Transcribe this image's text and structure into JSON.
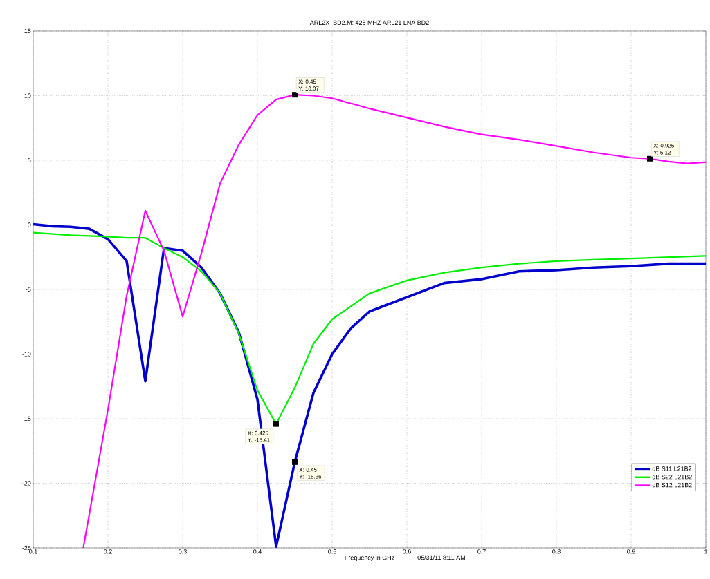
{
  "chart_data": {
    "type": "line",
    "title": "ARL2X_BD2.M:  425 MHZ ARL21 LNA BD2",
    "xlabel": "Frequency in GHz",
    "xlim": [
      0.1,
      1
    ],
    "xticks": [
      0.1,
      0.2,
      0.3,
      0.4,
      0.5,
      0.6,
      0.7,
      0.8,
      0.9,
      1
    ],
    "ylim": [
      -25,
      15
    ],
    "yticks": [
      -25,
      -20,
      -15,
      -10,
      -5,
      0,
      5,
      10,
      15
    ],
    "grid": true,
    "legend": "bottom right",
    "line_style": "solid",
    "marker": "none",
    "series": [
      {
        "name": "dB S11 L21B2",
        "color": "#0000cc",
        "x": [
          0.1,
          0.125,
          0.15,
          0.175,
          0.2,
          0.225,
          0.25,
          0.275,
          0.3,
          0.325,
          0.35,
          0.375,
          0.4,
          0.425,
          0.45,
          0.475,
          0.5,
          0.525,
          0.55,
          0.6,
          0.65,
          0.7,
          0.75,
          0.8,
          0.85,
          0.9,
          0.95,
          1.0
        ],
        "values": [
          0.05,
          -0.1,
          -0.15,
          -0.3,
          -1.1,
          -2.8,
          -12.1,
          -1.8,
          -2.0,
          -3.3,
          -5.3,
          -8.3,
          -13.5,
          -24.9,
          -18.36,
          -13,
          -10,
          -8,
          -6.7,
          -5.6,
          -4.5,
          -4.2,
          -3.6,
          -3.5,
          -3.3,
          -3.2,
          -3.0,
          -3.0
        ]
      },
      {
        "name": "dB S22 L21B2",
        "color": "#00ee00",
        "x": [
          0.1,
          0.15,
          0.2,
          0.225,
          0.25,
          0.275,
          0.3,
          0.325,
          0.35,
          0.375,
          0.4,
          0.425,
          0.45,
          0.475,
          0.5,
          0.55,
          0.6,
          0.65,
          0.7,
          0.75,
          0.8,
          0.85,
          0.9,
          0.95,
          1.0
        ],
        "values": [
          -0.6,
          -0.8,
          -0.9,
          -1.0,
          -1.0,
          -1.8,
          -2.5,
          -3.6,
          -5.3,
          -8.4,
          -12.8,
          -15.41,
          -12.6,
          -9.2,
          -7.3,
          -5.3,
          -4.3,
          -3.7,
          -3.3,
          -3.0,
          -2.8,
          -2.7,
          -2.6,
          -2.5,
          -2.4
        ]
      },
      {
        "name": "dB S12 L21B2",
        "color": "#ff00ff",
        "x": [
          0.167,
          0.2,
          0.225,
          0.25,
          0.275,
          0.3,
          0.325,
          0.35,
          0.375,
          0.4,
          0.425,
          0.45,
          0.475,
          0.5,
          0.55,
          0.6,
          0.65,
          0.7,
          0.75,
          0.8,
          0.85,
          0.9,
          0.925,
          0.95,
          0.975,
          1.0
        ],
        "values": [
          -25,
          -14.3,
          -5.5,
          1.1,
          -2.0,
          -7.1,
          -2.2,
          3.2,
          6.2,
          8.5,
          9.7,
          10.07,
          10.0,
          9.8,
          9.0,
          8.3,
          7.6,
          7.0,
          6.6,
          6.1,
          5.6,
          5.2,
          5.12,
          4.9,
          4.75,
          4.85
        ]
      }
    ],
    "annotations": [
      {
        "text": "X: 0.45 Y: 10.07",
        "x": 0.45,
        "y": 10.07
      },
      {
        "text": "X: 0.925 Y: 5.12",
        "x": 0.925,
        "y": 5.12
      },
      {
        "text": "X: 0.425 Y: -15.41",
        "x": 0.425,
        "y": -15.41
      },
      {
        "text": "X: 0.45 Y: -18.36",
        "x": 0.45,
        "y": -18.36
      },
      "05/31/11  8:11 AM"
    ]
  }
}
